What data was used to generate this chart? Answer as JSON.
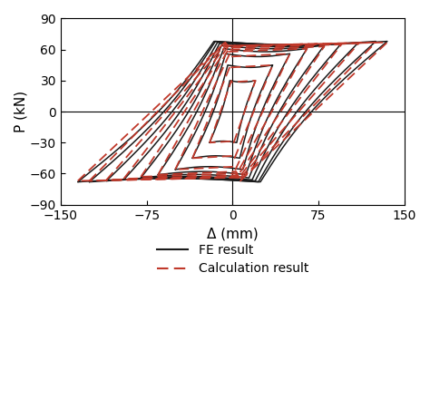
{
  "title": "",
  "xlabel": "Δ (mm)",
  "ylabel": "P (kN)",
  "xlim": [
    -150,
    150
  ],
  "ylim": [
    -90,
    90
  ],
  "xticks": [
    -150,
    -75,
    0,
    75,
    150
  ],
  "yticks": [
    -90,
    -60,
    -30,
    0,
    30,
    60,
    90
  ],
  "fe_color": "#1a1a1a",
  "calc_color": "#c0392b",
  "legend_labels": [
    "FE result",
    "Calculation result"
  ],
  "background_color": "#ffffff",
  "fontsize": 11,
  "fe_amplitudes": [
    [
      20,
      30
    ],
    [
      35,
      45
    ],
    [
      50,
      56
    ],
    [
      65,
      61
    ],
    [
      80,
      64
    ],
    [
      95,
      66
    ],
    [
      110,
      67
    ],
    [
      125,
      68
    ],
    [
      135,
      68
    ]
  ],
  "calc_amplitudes": [
    [
      20,
      30
    ],
    [
      35,
      45
    ],
    [
      50,
      56
    ],
    [
      65,
      61
    ],
    [
      80,
      63
    ],
    [
      95,
      65
    ],
    [
      110,
      66
    ],
    [
      125,
      67
    ],
    [
      135,
      67
    ]
  ]
}
